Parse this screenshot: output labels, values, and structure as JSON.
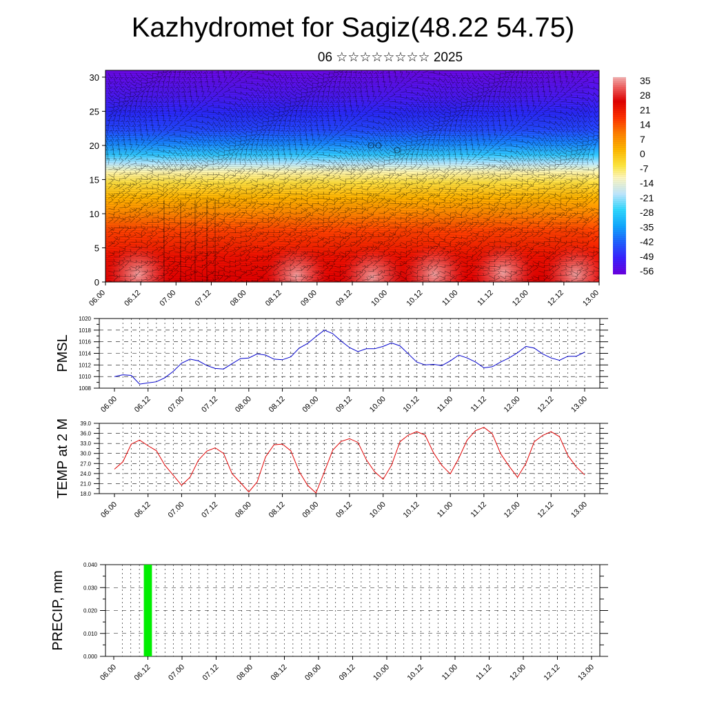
{
  "title": "Kazhydromet for Sagiz(48.22 54.75)",
  "subtitle": "06 ☆☆☆☆☆☆☆☆ 2025",
  "x_ticks": [
    "06.00",
    "06.12",
    "07.00",
    "07.12",
    "08.00",
    "08.12",
    "09.00",
    "09.12",
    "10.00",
    "10.12",
    "11.00",
    "11.12",
    "12.00",
    "12.12",
    "13.00"
  ],
  "colors": {
    "pmsl_line": "#0000cc",
    "temp_line": "#e00000",
    "precip_bar": "#00ee00",
    "grid": "#000000"
  },
  "chart_data": [
    {
      "type": "heatmap",
      "name": "vertical-section",
      "x_ticks": [
        "06.00",
        "06.12",
        "07.00",
        "07.12",
        "08.00",
        "08.12",
        "09.00",
        "09.12",
        "10.00",
        "10.12",
        "11.00",
        "11.12",
        "12.00",
        "12.12",
        "13.00"
      ],
      "y_ticks": [
        0,
        5,
        10,
        15,
        20,
        25,
        30
      ],
      "ylim": [
        0,
        31
      ],
      "colorbar_labels": [
        35,
        28,
        21,
        14,
        7,
        0,
        -7,
        -14,
        -21,
        -28,
        -35,
        -42,
        -49,
        -56
      ],
      "value_range": [
        -60,
        38
      ],
      "overlay": "wind barbs"
    },
    {
      "type": "line",
      "name": "pmsl",
      "ylabel": "PMSL",
      "ylim": [
        1008,
        1020
      ],
      "y_ticks": [
        1008,
        1010,
        1012,
        1014,
        1016,
        1018,
        1020
      ],
      "x_ticks": [
        "06.00",
        "06.12",
        "07.00",
        "07.12",
        "08.00",
        "08.12",
        "09.00",
        "09.12",
        "10.00",
        "10.12",
        "11.00",
        "11.12",
        "12.00",
        "12.12",
        "13.00"
      ],
      "interval_hours": 3,
      "values": [
        1010.0,
        1010.3,
        1010.2,
        1008.7,
        1008.9,
        1009.1,
        1009.8,
        1010.9,
        1012.3,
        1013.0,
        1012.7,
        1011.9,
        1011.4,
        1011.3,
        1012.2,
        1013.1,
        1013.2,
        1013.9,
        1013.7,
        1013.0,
        1012.9,
        1013.4,
        1014.9,
        1015.7,
        1016.9,
        1018.0,
        1017.4,
        1016.1,
        1015.0,
        1014.3,
        1014.8,
        1014.8,
        1015.2,
        1015.8,
        1015.3,
        1013.9,
        1012.5,
        1012.0,
        1012.1,
        1011.9,
        1012.7,
        1013.7,
        1013.2,
        1012.5,
        1011.5,
        1011.7,
        1012.5,
        1013.2,
        1014.1,
        1015.2,
        1014.9,
        1013.9,
        1013.2,
        1012.8,
        1013.5,
        1013.5,
        1014.2
      ]
    },
    {
      "type": "line",
      "name": "temp",
      "ylabel": "TEMP at 2 M",
      "ylim": [
        18,
        39
      ],
      "y_ticks": [
        "18.0",
        "21.0",
        "24.0",
        "27.0",
        "30.0",
        "33.0",
        "36.0",
        "39.0"
      ],
      "x_ticks": [
        "06.00",
        "06.12",
        "07.00",
        "07.12",
        "08.00",
        "08.12",
        "09.00",
        "09.12",
        "10.00",
        "10.12",
        "11.00",
        "11.12",
        "12.00",
        "12.12",
        "13.00"
      ],
      "interval_hours": 3,
      "values": [
        25.3,
        27.5,
        32.8,
        34.0,
        32.3,
        30.8,
        26.5,
        23.5,
        20.5,
        22.9,
        28.0,
        30.7,
        31.7,
        30.0,
        24.0,
        21.3,
        18.5,
        21.5,
        29.0,
        32.6,
        32.8,
        30.8,
        24.6,
        20.5,
        18.2,
        24.5,
        31.0,
        33.6,
        34.4,
        33.3,
        28.1,
        24.5,
        22.3,
        26.5,
        33.5,
        35.5,
        36.5,
        35.5,
        30.2,
        26.4,
        23.9,
        28.5,
        34.0,
        36.8,
        37.8,
        35.9,
        29.9,
        26.2,
        22.9,
        27.0,
        33.5,
        35.4,
        36.5,
        35.0,
        29.4,
        26.0,
        23.6
      ]
    },
    {
      "type": "bar",
      "name": "precip",
      "ylabel": "PRECIP, mm",
      "ylim": [
        0,
        0.04
      ],
      "y_ticks": [
        "0.000",
        "0.010",
        "0.020",
        "0.030",
        "0.040"
      ],
      "x_ticks": [
        "06.00",
        "06.12",
        "07.00",
        "07.12",
        "08.00",
        "08.12",
        "09.00",
        "09.12",
        "10.00",
        "10.12",
        "11.00",
        "11.12",
        "12.00",
        "12.12",
        "13.00"
      ],
      "interval_hours": 3,
      "values": [
        0,
        0,
        0,
        0,
        0.04,
        0,
        0,
        0,
        0,
        0,
        0,
        0,
        0,
        0,
        0,
        0,
        0,
        0,
        0,
        0,
        0,
        0,
        0,
        0,
        0,
        0,
        0,
        0,
        0,
        0,
        0,
        0,
        0,
        0,
        0,
        0,
        0,
        0,
        0,
        0,
        0,
        0,
        0,
        0,
        0,
        0,
        0,
        0,
        0,
        0,
        0,
        0,
        0,
        0,
        0,
        0,
        0
      ]
    }
  ]
}
